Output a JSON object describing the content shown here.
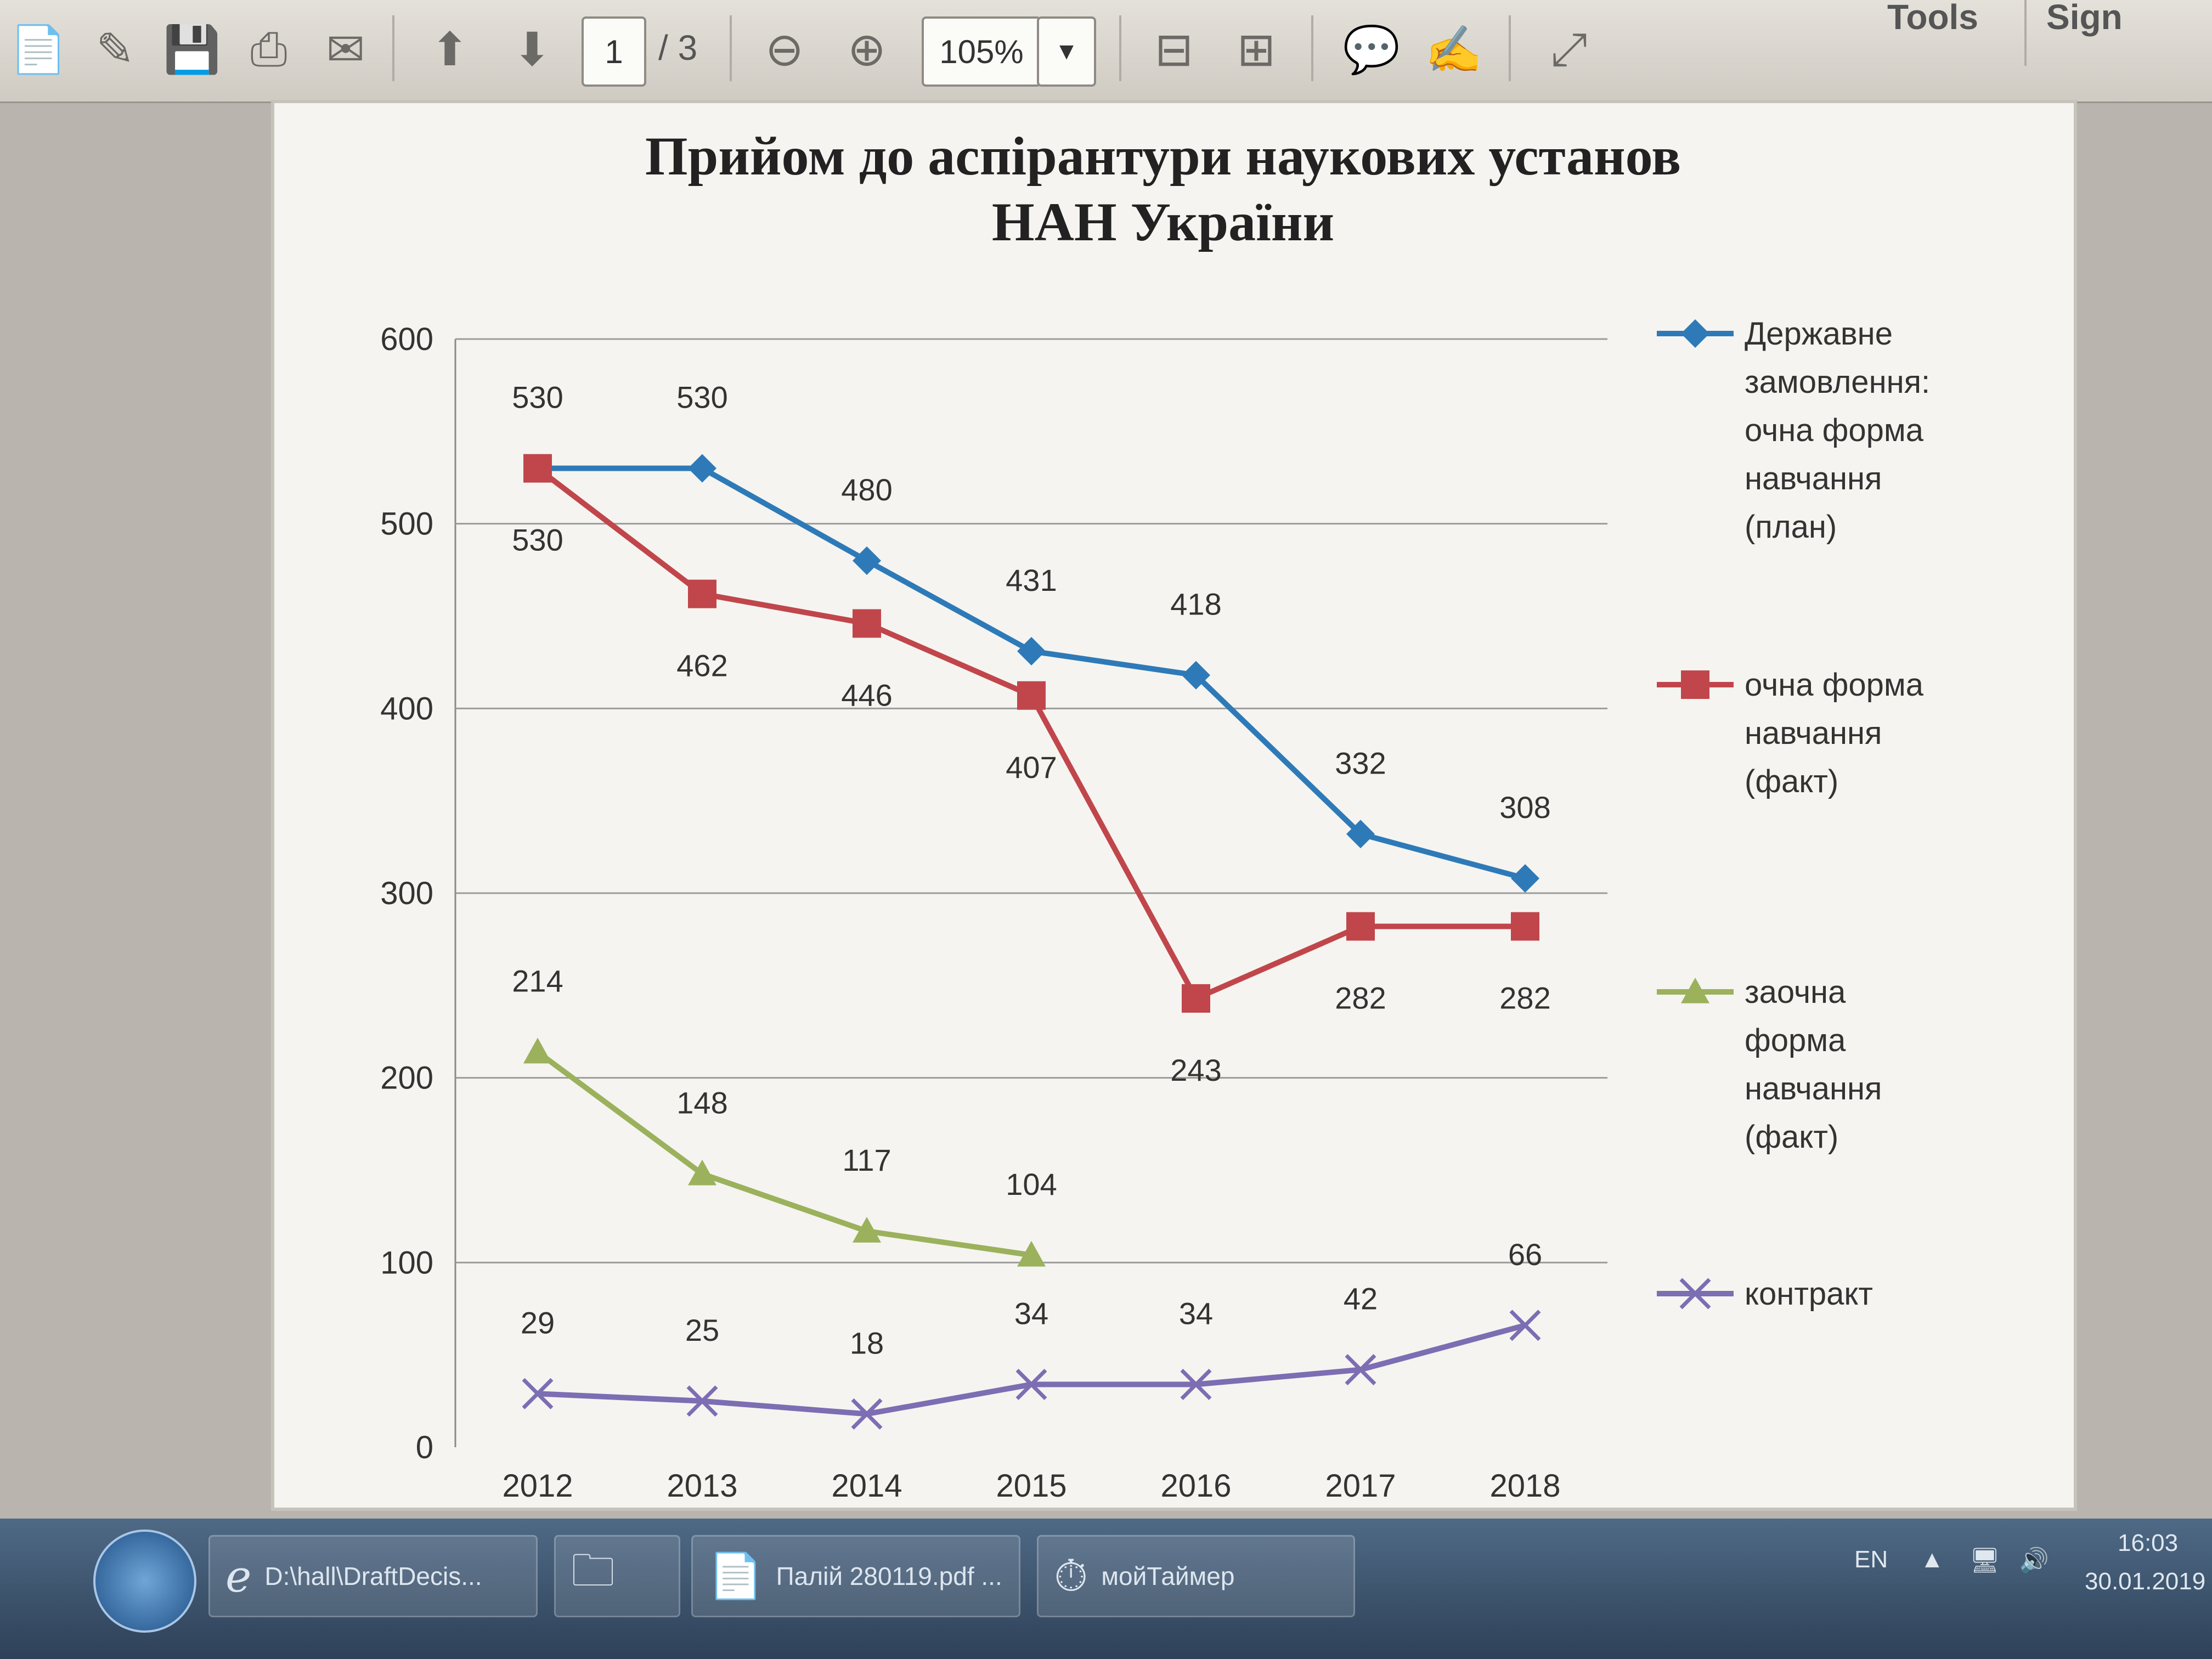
{
  "toolbar": {
    "page_current": "1",
    "page_total": "/ 3",
    "zoom": "105%",
    "tools_label": "Tools",
    "sign_label": "Sign"
  },
  "taskbar": {
    "items": [
      {
        "label": "D:\\hall\\DraftDecis..."
      },
      {
        "label": ""
      },
      {
        "label": "Палій 280119.pdf ..."
      },
      {
        "label": "мойТаймер"
      }
    ],
    "lang": "EN",
    "time": "16:03",
    "date": "30.01.2019"
  },
  "chart_data": {
    "type": "line",
    "title_line1": "Прийом до аспірантури наукових установ",
    "title_line2": "НАН України",
    "x": [
      "2012",
      "2013",
      "2014",
      "2015",
      "2016",
      "2017",
      "2018"
    ],
    "ylim": [
      0,
      600
    ],
    "yticks": [
      "0",
      "100",
      "200",
      "300",
      "400",
      "500",
      "600"
    ],
    "grid": true,
    "legend_position": "right",
    "series": [
      {
        "name_lines": [
          "Державне",
          "замовлення:",
          "очна форма",
          "навчання",
          "(план)"
        ],
        "color": "#2e7ab8",
        "marker": "diamond",
        "values": [
          530,
          530,
          480,
          431,
          418,
          332,
          308
        ],
        "labels": [
          "530",
          "530",
          "480",
          "431",
          "418",
          "332",
          "308"
        ]
      },
      {
        "name_lines": [
          "очна форма",
          "навчання",
          "(факт)"
        ],
        "color": "#c0464b",
        "marker": "square",
        "values": [
          530,
          462,
          446,
          407,
          243,
          282,
          282
        ],
        "labels": [
          "530",
          "462",
          "446",
          "407",
          "243",
          "282",
          "282"
        ]
      },
      {
        "name_lines": [
          "заочна",
          "форма",
          "навчання",
          "(факт)"
        ],
        "color": "#9bb15c",
        "marker": "triangle",
        "values": [
          214,
          148,
          117,
          104,
          null,
          null,
          null
        ],
        "labels": [
          "214",
          "148",
          "117",
          "104",
          "",
          "",
          ""
        ]
      },
      {
        "name_lines": [
          "контракт"
        ],
        "color": "#7d6db3",
        "marker": "x",
        "values": [
          29,
          25,
          18,
          34,
          34,
          42,
          66
        ],
        "labels": [
          "29",
          "25",
          "18",
          "34",
          "34",
          "42",
          "66"
        ]
      }
    ]
  }
}
